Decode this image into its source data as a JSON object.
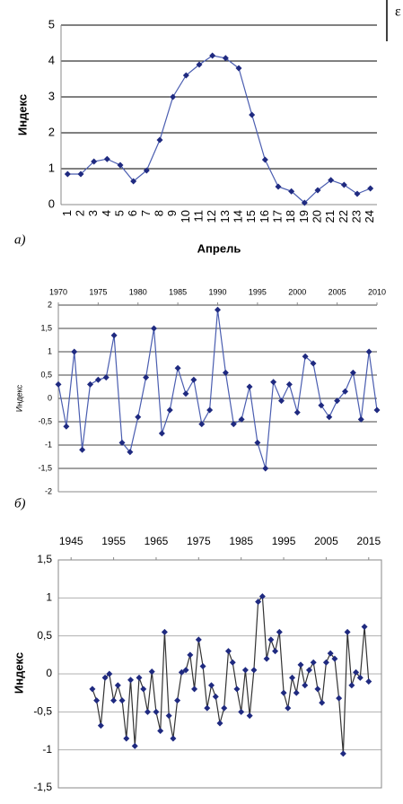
{
  "margin_text": "ɛ",
  "chart_data": [
    {
      "type": "line",
      "y_label": "Индекс",
      "x_label": "Апрель",
      "annotation": "а)",
      "categories": [
        "1",
        "2",
        "3",
        "4",
        "5",
        "6",
        "7",
        "8",
        "9",
        "10",
        "11",
        "12",
        "13",
        "14",
        "15",
        "16",
        "17",
        "18",
        "19",
        "20",
        "21",
        "22",
        "23",
        "24"
      ],
      "values": [
        0.85,
        0.85,
        1.2,
        1.27,
        1.1,
        0.65,
        0.95,
        1.8,
        3.0,
        3.6,
        3.9,
        4.15,
        4.08,
        3.8,
        2.5,
        1.25,
        0.5,
        0.37,
        0.05,
        0.4,
        0.68,
        0.55,
        0.3,
        0.45
      ],
      "color": "#1f2a80",
      "line_color": "#4a5db0",
      "grid_color": "#000000",
      "ylim": [
        0,
        5
      ],
      "yticks": [
        0,
        1,
        2,
        3,
        4,
        5
      ],
      "grid": true
    },
    {
      "type": "line",
      "y_label": "Индекс",
      "annotation": "б)",
      "x": [
        1970,
        1971,
        1972,
        1973,
        1974,
        1975,
        1976,
        1977,
        1978,
        1979,
        1980,
        1981,
        1982,
        1983,
        1984,
        1985,
        1986,
        1987,
        1988,
        1989,
        1990,
        1991,
        1992,
        1993,
        1994,
        1995,
        1996,
        1997,
        1998,
        1999,
        2000,
        2001,
        2002,
        2003,
        2004,
        2005,
        2006,
        2007,
        2008,
        2009,
        2010
      ],
      "values": [
        0.3,
        -0.6,
        1.0,
        -1.1,
        0.3,
        0.4,
        0.45,
        1.35,
        -0.95,
        -1.15,
        -0.4,
        0.45,
        1.5,
        -0.75,
        -0.25,
        0.65,
        0.1,
        0.4,
        -0.55,
        -0.25,
        1.9,
        0.55,
        -0.55,
        -0.45,
        0.25,
        -0.95,
        -1.5,
        0.35,
        -0.05,
        0.3,
        -0.3,
        0.9,
        0.75,
        -0.15,
        -0.4,
        -0.05,
        0.15,
        0.55,
        -0.45,
        1.0,
        -0.25
      ],
      "color": "#1f2a80",
      "line_color": "#4a5db0",
      "grid_color": "#444444",
      "xlim": [
        1970,
        2010
      ],
      "xticks": [
        1970,
        1975,
        1980,
        1985,
        1990,
        1995,
        2000,
        2005,
        2010
      ],
      "ylim": [
        -2,
        2
      ],
      "yticks": [
        -2,
        {
          "value": -1.5,
          "label": "-1,5"
        },
        -1,
        {
          "value": -0.5,
          "label": "-0,5"
        },
        0,
        {
          "value": 0.5,
          "label": "0,5"
        },
        1,
        {
          "value": 1.5,
          "label": "1,5"
        },
        2
      ],
      "grid": true
    },
    {
      "type": "line",
      "y_label": "Индекс",
      "x": [
        1950,
        1951,
        1952,
        1953,
        1954,
        1955,
        1956,
        1957,
        1958,
        1959,
        1960,
        1961,
        1962,
        1963,
        1964,
        1965,
        1966,
        1967,
        1968,
        1969,
        1970,
        1971,
        1972,
        1973,
        1974,
        1975,
        1976,
        1977,
        1978,
        1979,
        1980,
        1981,
        1982,
        1983,
        1984,
        1985,
        1986,
        1987,
        1988,
        1989,
        1990,
        1991,
        1992,
        1993,
        1994,
        1995,
        1996,
        1997,
        1998,
        1999,
        2000,
        2001,
        2002,
        2003,
        2004,
        2005,
        2006,
        2007,
        2008,
        2009,
        2010,
        2011,
        2012,
        2013,
        2014,
        2015
      ],
      "values": [
        -0.2,
        -0.35,
        -0.68,
        -0.05,
        0,
        -0.35,
        -0.15,
        -0.35,
        -0.85,
        -0.08,
        -0.95,
        -0.05,
        -0.2,
        -0.5,
        0.03,
        -0.5,
        -0.75,
        0.55,
        -0.55,
        -0.85,
        -0.35,
        0.02,
        0.05,
        0.25,
        -0.2,
        0.45,
        0.1,
        -0.45,
        -0.15,
        -0.3,
        -0.65,
        -0.45,
        0.3,
        0.15,
        -0.2,
        -0.5,
        0.05,
        -0.55,
        0.05,
        0.95,
        1.02,
        0.2,
        0.45,
        0.3,
        0.55,
        -0.25,
        -0.45,
        -0.05,
        -0.25,
        0.12,
        -0.15,
        0.05,
        0.15,
        -0.2,
        -0.38,
        0.15,
        0.27,
        0.2,
        -0.32,
        -1.05,
        0.55,
        -0.15,
        0.02,
        -0.05,
        0.62,
        -0.1
      ],
      "color": "#1f2a80",
      "line_color": "#333333",
      "grid_color": "#b0b0b0",
      "xlim": [
        1942,
        2018
      ],
      "xticks": [
        1945,
        1955,
        1965,
        1975,
        1985,
        1995,
        2005,
        2015
      ],
      "ylim": [
        -1.5,
        1.5
      ],
      "yticks": [
        {
          "value": -1.5,
          "label": "-1,5"
        },
        -1,
        {
          "value": -0.5,
          "label": "-0,5"
        },
        0,
        {
          "value": 0.5,
          "label": "0,5"
        },
        1,
        {
          "value": 1.5,
          "label": "1,5"
        }
      ],
      "grid": true
    }
  ]
}
